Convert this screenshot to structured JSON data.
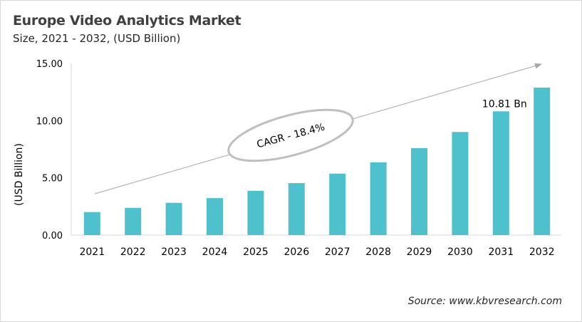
{
  "header": {
    "title": "Europe Video Analytics Market",
    "subtitle": "Size, 2021 - 2032, (USD Billion)"
  },
  "footer": {
    "source": "Source: www.kbvresearch.com"
  },
  "chart_data": {
    "type": "bar",
    "title": "Europe Video Analytics Market",
    "subtitle": "Size, 2021 - 2032, (USD Billion)",
    "xlabel": "",
    "ylabel": "(USD Billion)",
    "ylim": [
      0,
      15
    ],
    "yticks": [
      "0.00",
      "5.00",
      "10.00",
      "15.00"
    ],
    "grid": false,
    "categories": [
      "2021",
      "2022",
      "2023",
      "2024",
      "2025",
      "2026",
      "2027",
      "2028",
      "2029",
      "2030",
      "2031",
      "2032"
    ],
    "values": [
      2.01,
      2.38,
      2.82,
      3.23,
      3.87,
      4.54,
      5.37,
      6.36,
      7.6,
      9.01,
      10.81,
      12.89
    ],
    "bar_color": "#4fc1cc",
    "annotations": {
      "data_label": {
        "category": "2031",
        "text": "10.81 Bn"
      },
      "cagr": "CAGR - 18.4%"
    }
  }
}
